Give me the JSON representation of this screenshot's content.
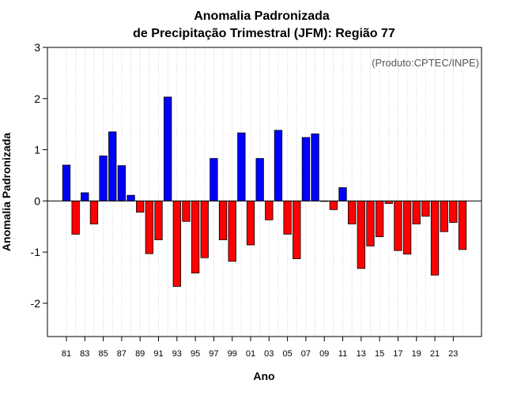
{
  "chart_data": {
    "type": "bar",
    "title": "Anomalia Padronizada",
    "subtitle": "de Precipitação Trimestral (JFM): Região 77",
    "annotation": "(Produto:CPTEC/INPE)",
    "xlabel": "Ano",
    "ylabel": "Anomalia Padronizada",
    "ylim": [
      -2.65,
      3.0
    ],
    "yticks": [
      -2,
      -1,
      0,
      1,
      2,
      3
    ],
    "categories": [
      "81",
      "82",
      "83",
      "84",
      "85",
      "86",
      "87",
      "88",
      "89",
      "90",
      "91",
      "92",
      "93",
      "94",
      "95",
      "96",
      "97",
      "98",
      "99",
      "00",
      "01",
      "02",
      "03",
      "04",
      "05",
      "06",
      "07",
      "08",
      "09",
      "10",
      "11",
      "12",
      "13",
      "14",
      "15",
      "16",
      "17",
      "18",
      "19",
      "20",
      "21",
      "22",
      "23",
      "24"
    ],
    "xtick_labels": [
      "81",
      "83",
      "85",
      "87",
      "89",
      "91",
      "93",
      "95",
      "97",
      "99",
      "01",
      "03",
      "05",
      "07",
      "09",
      "11",
      "13",
      "15",
      "17",
      "19",
      "21",
      "23"
    ],
    "values": [
      0.7,
      -0.65,
      0.16,
      -0.45,
      0.88,
      1.35,
      0.69,
      0.11,
      -0.22,
      -1.03,
      -0.76,
      2.03,
      -1.67,
      -0.4,
      -1.41,
      -1.11,
      0.83,
      -0.76,
      -1.18,
      1.33,
      -0.86,
      0.83,
      -0.37,
      1.38,
      -0.65,
      -1.13,
      1.24,
      1.31,
      -0.01,
      -0.17,
      0.26,
      -0.45,
      -1.32,
      -0.88,
      -0.7,
      -0.05,
      -0.97,
      -1.04,
      -0.45,
      -0.3,
      -1.45,
      -0.6,
      -0.42,
      -0.95
    ],
    "colors": {
      "positive": "#0000ff",
      "negative": "#ff0000",
      "grid": "#d0d0d0",
      "frame": "#000000"
    }
  }
}
